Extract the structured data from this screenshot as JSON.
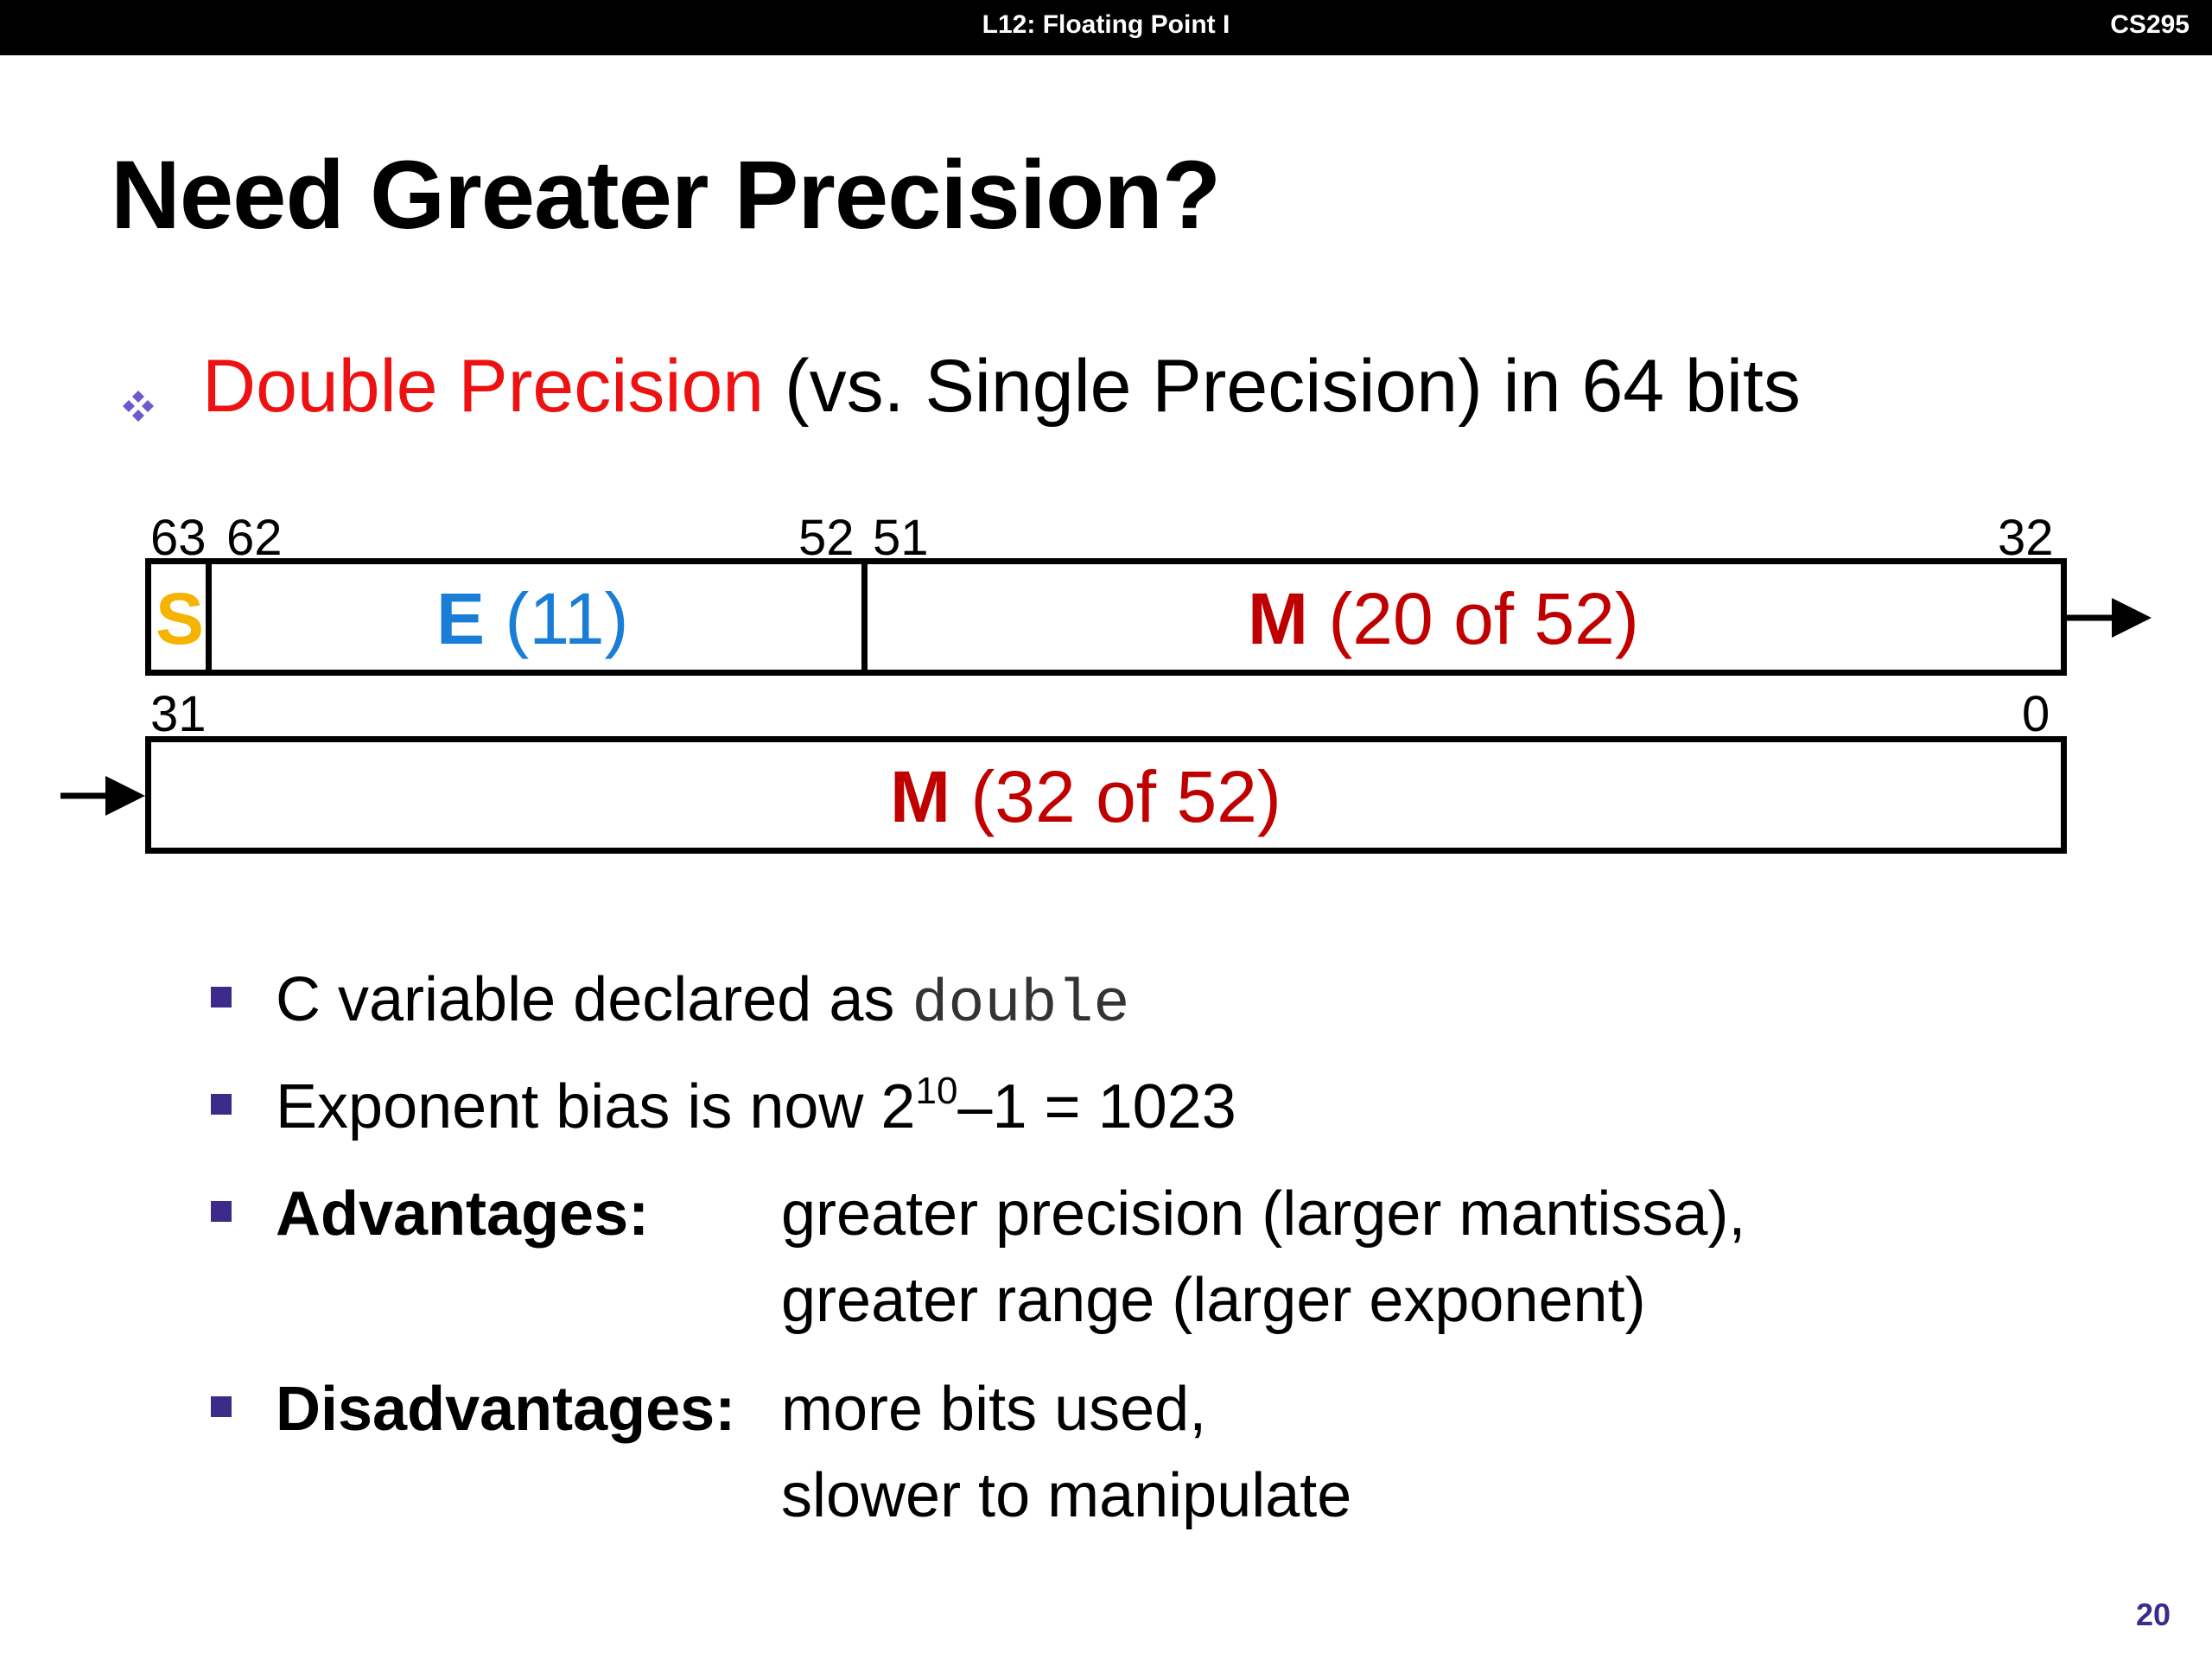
{
  "header": {
    "lecture": "L12: Floating Point I",
    "course": "CS295"
  },
  "title": "Need Greater Precision?",
  "bullet": {
    "highlight": "Double Precision",
    "rest": " (vs. Single Precision) in 64 bits",
    "highlight_color": "#ee1111"
  },
  "diagram": {
    "top_bits": {
      "b63": "63",
      "b62": "62",
      "b52": "52",
      "b51": "51",
      "b32": "32"
    },
    "bottom_bits": {
      "b31": "31",
      "b0": "0"
    },
    "fields": {
      "s": "S",
      "e_letter": "E",
      "e_count": " (11)",
      "m1_letter": "M",
      "m1_count": " (20 of 52)",
      "m2_letter": "M",
      "m2_count": " (32 of 52)"
    },
    "colors": {
      "s": "#f5b400",
      "e": "#1a7dd6",
      "m": "#c00000"
    }
  },
  "subbullets": {
    "c_var": {
      "text": "C variable declared as ",
      "code": "double"
    },
    "bias": {
      "prefix": "Exponent bias is now 2",
      "sup": "10",
      "suffix": "–1 = 1023"
    },
    "advantages": {
      "label": "Advantages:",
      "line1": "greater precision (larger mantissa),",
      "line2": "greater range (larger exponent)"
    },
    "disadvantages": {
      "label": "Disadvantages:",
      "line1": "more bits used,",
      "line2": "slower to manipulate"
    }
  },
  "page_number": "20"
}
